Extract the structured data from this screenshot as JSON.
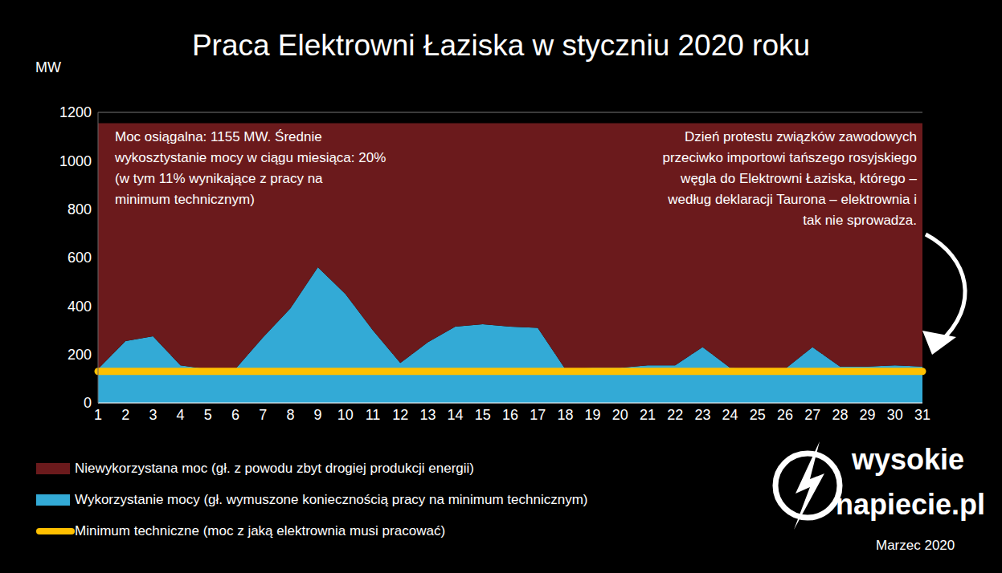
{
  "chart_data": {
    "type": "area",
    "title": "Praca Elektrowni Łaziska w styczniu 2020 roku",
    "y_label": "MW",
    "categories": [
      "1",
      "2",
      "3",
      "4",
      "5",
      "6",
      "7",
      "8",
      "9",
      "10",
      "11",
      "12",
      "13",
      "14",
      "15",
      "16",
      "17",
      "18",
      "19",
      "20",
      "21",
      "22",
      "23",
      "24",
      "25",
      "26",
      "27",
      "28",
      "29",
      "30",
      "31"
    ],
    "series": [
      {
        "name": "Niewykorzystana moc (gł. z powodu zbyt drogiej produkcji energii)",
        "color": "#6b1a1c",
        "type": "area",
        "values": [
          1015,
          900,
          880,
          1000,
          1015,
          1015,
          885,
          765,
          595,
          705,
          855,
          990,
          905,
          840,
          830,
          840,
          845,
          1015,
          1010,
          1010,
          1000,
          1000,
          925,
          1010,
          1015,
          1015,
          925,
          1005,
          1005,
          1000,
          1005
        ]
      },
      {
        "name": "Wykorzystanie mocy (gł. wymuszone koniecznością pracy na minimum technicznym)",
        "color": "#33aad6",
        "type": "area",
        "values": [
          140,
          255,
          275,
          155,
          140,
          140,
          270,
          390,
          560,
          450,
          300,
          165,
          250,
          315,
          325,
          315,
          310,
          140,
          145,
          145,
          155,
          155,
          230,
          145,
          140,
          140,
          230,
          150,
          150,
          155,
          150
        ]
      },
      {
        "name": "Minimum techniczne (moc z jaką elektrownia musi pracować)",
        "color": "#ffc000",
        "type": "line",
        "values": [
          130,
          130,
          130,
          130,
          130,
          130,
          130,
          130,
          130,
          130,
          130,
          130,
          130,
          130,
          130,
          130,
          130,
          130,
          130,
          130,
          130,
          130,
          130,
          130,
          130,
          130,
          130,
          130,
          130,
          130,
          130
        ]
      }
    ],
    "stacked": true,
    "ylim": [
      0,
      1200
    ],
    "yticks": [
      0,
      200,
      400,
      600,
      800,
      1000,
      1200
    ],
    "grid": true,
    "legend": "bottom",
    "annotations": [
      [
        "Moc osiągalna: 1155 MW. Średnie",
        "wykosztystanie mocy w ciągu miesiąca: 20%",
        "(w tym 11% wynikające z pracy na",
        "minimum technicznym)"
      ],
      [
        "Dzień protestu związków zawodowych",
        "przeciwko importowi tańszego rosyjskiego",
        "węgla do Elektrowni Łaziska, którego –",
        "według deklaracji Taurona – elektrownia i",
        "tak nie sprowadza."
      ]
    ],
    "logo": [
      "wysokie",
      "napiecie.pl"
    ],
    "date": "Marzec 2020"
  }
}
